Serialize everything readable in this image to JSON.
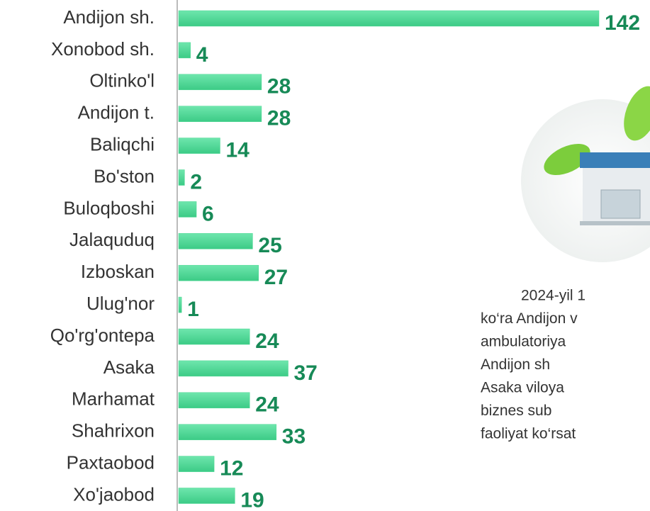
{
  "chart_data": {
    "type": "bar",
    "orientation": "horizontal",
    "categories": [
      "Andijon sh.",
      "Xonobod sh.",
      "Oltinko'l",
      "Andijon t.",
      "Baliqchi",
      "Bo'ston",
      "Buloqboshi",
      "Jalaquduq",
      "Izboskan",
      "Ulug'nor",
      "Qo'rg'ontepa",
      "Asaka",
      "Marhamat",
      "Shahrixon",
      "Paxtaobod",
      "Xo'jaobod"
    ],
    "values": [
      142,
      4,
      28,
      28,
      14,
      2,
      6,
      25,
      27,
      1,
      24,
      37,
      24,
      33,
      12,
      19
    ],
    "color": "#4cd893",
    "label_color": "#178a57",
    "annotation_lines": [
      "2024-yil 1",
      "ko‘ra Andijon v",
      "ambulatoriya",
      "Andijon sh",
      "Asaka viloya",
      "biznes sub",
      "faoliyat ko‘rsat"
    ]
  }
}
